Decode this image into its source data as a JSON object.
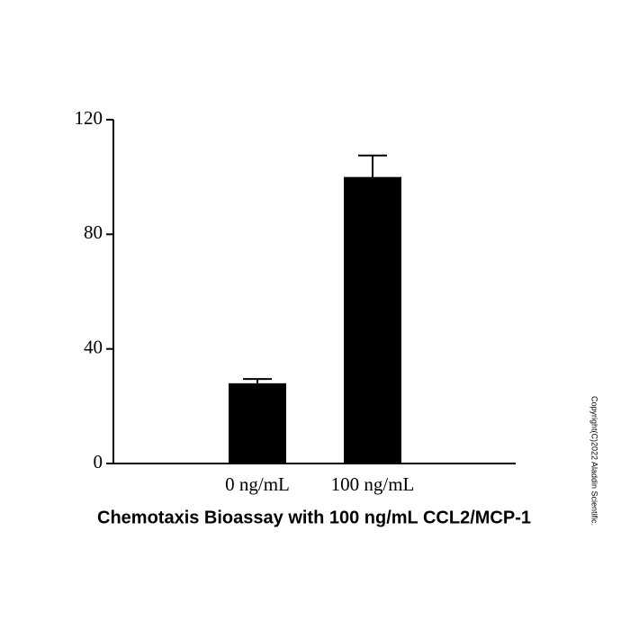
{
  "chart_data": {
    "type": "bar",
    "title": "Chemotaxis Bioassay with 100 ng/mL CCL2/MCP-1",
    "categories": [
      "0 ng/mL",
      "100 ng/mL"
    ],
    "values": [
      28,
      100
    ],
    "errors": [
      1.5,
      7.5
    ],
    "color": "#000000",
    "ylim": [
      0,
      120
    ],
    "yticks": [
      0,
      40,
      80,
      120
    ],
    "grid": false
  },
  "copyright": "Copyright(C)2022 Aladdin Scientific."
}
